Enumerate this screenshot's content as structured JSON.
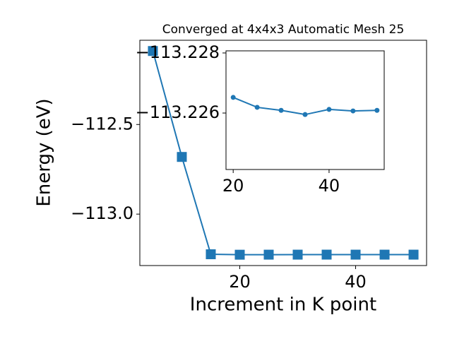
{
  "chart_data": [
    {
      "type": "line",
      "title": "Converged at 4x4x3 Automatic Mesh 25",
      "xlabel": "Increment in K point",
      "ylabel": "Energy (eV)",
      "x": [
        5,
        10,
        15,
        20,
        25,
        30,
        35,
        40,
        45,
        50
      ],
      "values": [
        -112.09,
        -112.681,
        -113.224,
        -113.2265,
        -113.2262,
        -113.2261,
        -113.226,
        -113.2261,
        -113.2261,
        -113.2261
      ],
      "color": "#1f77b4",
      "marker": "square",
      "xlim": [
        2.75,
        52.25
      ],
      "ylim": [
        -113.287,
        -112.03
      ],
      "xticks": [
        20,
        40
      ],
      "yticks": [
        {
          "value": -112.5,
          "label": "−112.5"
        },
        {
          "value": -113.0,
          "label": "−113.0"
        }
      ]
    },
    {
      "type": "line",
      "x": [
        20,
        25,
        30,
        35,
        40,
        45,
        50
      ],
      "values": [
        -113.22652,
        -113.22619,
        -113.22609,
        -113.22595,
        -113.22612,
        -113.22607,
        -113.22609
      ],
      "color": "#1f77b4",
      "marker": "circle",
      "xlim": [
        18.5,
        51.5
      ],
      "ylim": [
        -113.22412,
        -113.22807
      ],
      "xticks": [
        20,
        40
      ],
      "yticks": [
        {
          "value": -113.228,
          "label": "−113.228"
        },
        {
          "value": -113.226,
          "label": "−113.226"
        }
      ]
    }
  ]
}
